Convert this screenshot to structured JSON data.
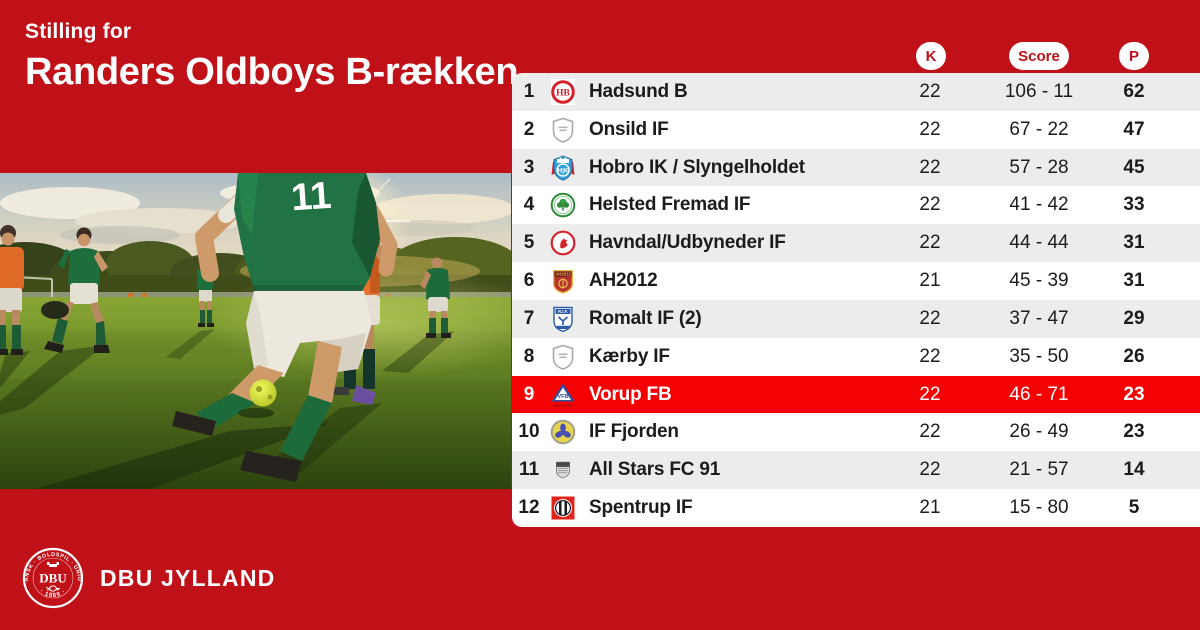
{
  "page": {
    "eyebrow": "Stilling for",
    "title": "Randers Oldboys B-rækken"
  },
  "photo": {
    "jersey_number": "11"
  },
  "footer": {
    "brand": "DBU JYLLAND",
    "seal_top": "DANSK · BOLDSPIL · UNION",
    "seal_bottom": "· 1889 ·",
    "seal_center": "DBU"
  },
  "colors": {
    "background_red": "#C01118",
    "highlight_red": "#F60102",
    "row_alt_gray": "#ECECEC",
    "row_white": "#FFFFFF",
    "text_dark": "#1C1C1C",
    "pill_bg": "#FFFFFF",
    "pill_text": "#C01118"
  },
  "chart_data": {
    "type": "table",
    "title": "Randers Oldboys B-rækken",
    "columns": [
      "K",
      "Score",
      "P"
    ],
    "rows": [
      {
        "pos": "1",
        "team": "Hadsund B",
        "k": "22",
        "score": "106 - 11",
        "p": "62",
        "logo": "hadsund-b",
        "highlight": false
      },
      {
        "pos": "2",
        "team": "Onsild IF",
        "k": "22",
        "score": "67 - 22",
        "p": "47",
        "logo": "klublogo-placeholder",
        "highlight": false
      },
      {
        "pos": "3",
        "team": "Hobro IK / Slyngelholdet",
        "k": "22",
        "score": "57 - 28",
        "p": "45",
        "logo": "hobro-ik",
        "highlight": false
      },
      {
        "pos": "4",
        "team": "Helsted Fremad IF",
        "k": "22",
        "score": "41 - 42",
        "p": "33",
        "logo": "helsted-fremad",
        "highlight": false
      },
      {
        "pos": "5",
        "team": "Havndal/Udbyneder IF",
        "k": "22",
        "score": "44 - 44",
        "p": "31",
        "logo": "havndal-udbyneder",
        "highlight": false
      },
      {
        "pos": "6",
        "team": "AH2012",
        "k": "21",
        "score": "45 - 39",
        "p": "31",
        "logo": "ah2012",
        "highlight": false
      },
      {
        "pos": "7",
        "team": "Romalt IF (2)",
        "k": "22",
        "score": "37 - 47",
        "p": "29",
        "logo": "romalt-if",
        "highlight": false
      },
      {
        "pos": "8",
        "team": "Kærby IF",
        "k": "22",
        "score": "35 - 50",
        "p": "26",
        "logo": "klublogo-placeholder",
        "highlight": false
      },
      {
        "pos": "9",
        "team": "Vorup FB",
        "k": "22",
        "score": "46 - 71",
        "p": "23",
        "logo": "vorup-fb",
        "highlight": true
      },
      {
        "pos": "10",
        "team": "IF Fjorden",
        "k": "22",
        "score": "26 - 49",
        "p": "23",
        "logo": "if-fjorden",
        "highlight": false
      },
      {
        "pos": "11",
        "team": "All Stars FC 91",
        "k": "22",
        "score": "21 - 57",
        "p": "14",
        "logo": "all-stars-fc-91",
        "highlight": false
      },
      {
        "pos": "12",
        "team": "Spentrup IF",
        "k": "21",
        "score": "15 - 80",
        "p": "5",
        "logo": "spentrup-if",
        "highlight": false
      }
    ]
  }
}
